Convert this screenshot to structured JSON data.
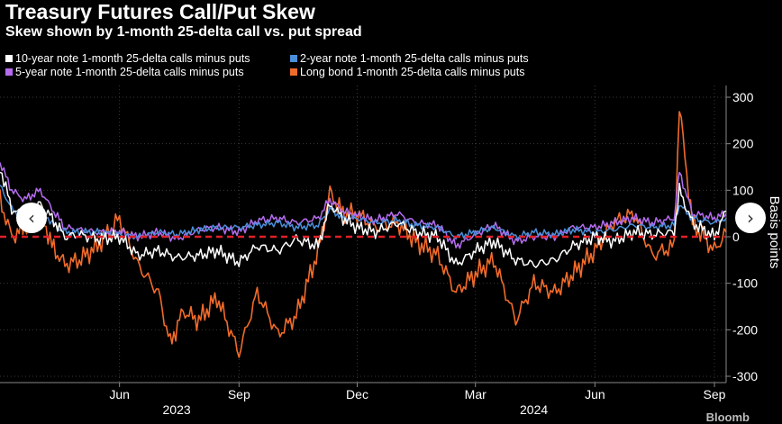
{
  "title": "Treasury Futures Call/Put Skew",
  "subtitle": "Skew shown by 1-month 25-delta call vs. put spread",
  "colors": {
    "background": "#000000",
    "ten_year": "#ffffff",
    "two_year": "#4a8fd9",
    "five_year": "#b56cf0",
    "long_bond": "#f26b2a",
    "zero_line": "#e0202a",
    "grid": "#3a3a3a"
  },
  "nav": {
    "prev_icon": "chevron-left-icon",
    "next_icon": "chevron-right-icon",
    "prev_glyph": "‹",
    "next_glyph": "›"
  },
  "source_partial": "Bloomb",
  "chart_data": {
    "type": "line",
    "title": "Treasury Futures Call/Put Skew",
    "ylabel": "Basis points",
    "ylim": [
      -320,
      330
    ],
    "yticks": [
      300,
      200,
      100,
      0,
      -100,
      -200,
      -300
    ],
    "x_range": [
      "2023-03-01",
      "2024-09-10"
    ],
    "month_ticks": [
      {
        "label": "Jun",
        "date": "2023-06-01"
      },
      {
        "label": "Sep",
        "date": "2023-09-01"
      },
      {
        "label": "Dec",
        "date": "2023-12-01"
      },
      {
        "label": "Mar",
        "date": "2024-03-01"
      },
      {
        "label": "Jun",
        "date": "2024-06-01"
      },
      {
        "label": "Sep",
        "date": "2024-09-01"
      }
    ],
    "year_labels": [
      {
        "label": "2023",
        "date": "2023-07-15"
      },
      {
        "label": "2024",
        "date": "2024-04-15"
      }
    ],
    "zero_line": 0,
    "series": [
      {
        "name": "10-year note 1-month 25-delta calls minus puts",
        "key": "ten_year",
        "points": [
          [
            "2023-03-01",
            150
          ],
          [
            "2023-03-10",
            60
          ],
          [
            "2023-03-20",
            40
          ],
          [
            "2023-04-01",
            70
          ],
          [
            "2023-04-10",
            40
          ],
          [
            "2023-04-20",
            0
          ],
          [
            "2023-05-01",
            5
          ],
          [
            "2023-05-15",
            -5
          ],
          [
            "2023-06-01",
            0
          ],
          [
            "2023-06-15",
            -40
          ],
          [
            "2023-07-01",
            -30
          ],
          [
            "2023-07-15",
            -45
          ],
          [
            "2023-08-01",
            -40
          ],
          [
            "2023-08-15",
            -30
          ],
          [
            "2023-09-01",
            -55
          ],
          [
            "2023-09-15",
            -20
          ],
          [
            "2023-10-01",
            -30
          ],
          [
            "2023-10-15",
            -5
          ],
          [
            "2023-11-01",
            -20
          ],
          [
            "2023-11-10",
            70
          ],
          [
            "2023-11-20",
            40
          ],
          [
            "2023-12-01",
            20
          ],
          [
            "2023-12-15",
            10
          ],
          [
            "2024-01-01",
            30
          ],
          [
            "2024-01-15",
            10
          ],
          [
            "2024-02-01",
            0
          ],
          [
            "2024-02-15",
            -60
          ],
          [
            "2024-03-01",
            -30
          ],
          [
            "2024-03-15",
            -10
          ],
          [
            "2024-04-01",
            -50
          ],
          [
            "2024-04-15",
            -60
          ],
          [
            "2024-05-01",
            -50
          ],
          [
            "2024-05-15",
            -20
          ],
          [
            "2024-06-01",
            0
          ],
          [
            "2024-06-15",
            -10
          ],
          [
            "2024-07-01",
            10
          ],
          [
            "2024-07-15",
            5
          ],
          [
            "2024-08-01",
            10
          ],
          [
            "2024-08-05",
            100
          ],
          [
            "2024-08-15",
            30
          ],
          [
            "2024-09-01",
            0
          ],
          [
            "2024-09-10",
            55
          ]
        ]
      },
      {
        "name": "2-year note 1-month 25-delta calls minus puts",
        "key": "two_year",
        "points": [
          [
            "2023-03-01",
            110
          ],
          [
            "2023-03-10",
            60
          ],
          [
            "2023-03-20",
            40
          ],
          [
            "2023-04-01",
            60
          ],
          [
            "2023-04-10",
            30
          ],
          [
            "2023-04-20",
            10
          ],
          [
            "2023-05-01",
            10
          ],
          [
            "2023-05-15",
            10
          ],
          [
            "2023-06-01",
            5
          ],
          [
            "2023-06-15",
            0
          ],
          [
            "2023-07-01",
            10
          ],
          [
            "2023-07-15",
            5
          ],
          [
            "2023-08-01",
            15
          ],
          [
            "2023-08-15",
            20
          ],
          [
            "2023-09-01",
            20
          ],
          [
            "2023-09-15",
            25
          ],
          [
            "2023-10-01",
            30
          ],
          [
            "2023-10-15",
            20
          ],
          [
            "2023-11-01",
            25
          ],
          [
            "2023-11-10",
            60
          ],
          [
            "2023-11-20",
            40
          ],
          [
            "2023-12-01",
            40
          ],
          [
            "2023-12-15",
            30
          ],
          [
            "2024-01-01",
            35
          ],
          [
            "2024-01-15",
            25
          ],
          [
            "2024-02-01",
            20
          ],
          [
            "2024-02-15",
            0
          ],
          [
            "2024-03-01",
            10
          ],
          [
            "2024-03-15",
            20
          ],
          [
            "2024-04-01",
            0
          ],
          [
            "2024-04-15",
            10
          ],
          [
            "2024-05-01",
            5
          ],
          [
            "2024-05-15",
            15
          ],
          [
            "2024-06-01",
            10
          ],
          [
            "2024-06-15",
            15
          ],
          [
            "2024-07-01",
            25
          ],
          [
            "2024-07-15",
            20
          ],
          [
            "2024-08-01",
            25
          ],
          [
            "2024-08-05",
            70
          ],
          [
            "2024-08-15",
            40
          ],
          [
            "2024-09-01",
            30
          ],
          [
            "2024-09-10",
            40
          ]
        ]
      },
      {
        "name": "5-year note 1-month 25-delta calls minus puts",
        "key": "five_year",
        "points": [
          [
            "2023-03-01",
            160
          ],
          [
            "2023-03-10",
            100
          ],
          [
            "2023-03-20",
            80
          ],
          [
            "2023-04-01",
            100
          ],
          [
            "2023-04-10",
            60
          ],
          [
            "2023-04-20",
            20
          ],
          [
            "2023-05-01",
            15
          ],
          [
            "2023-05-15",
            10
          ],
          [
            "2023-06-01",
            10
          ],
          [
            "2023-06-15",
            0
          ],
          [
            "2023-07-01",
            10
          ],
          [
            "2023-07-15",
            -5
          ],
          [
            "2023-08-01",
            15
          ],
          [
            "2023-08-15",
            20
          ],
          [
            "2023-09-01",
            10
          ],
          [
            "2023-09-15",
            35
          ],
          [
            "2023-10-01",
            40
          ],
          [
            "2023-10-15",
            30
          ],
          [
            "2023-11-01",
            40
          ],
          [
            "2023-11-10",
            80
          ],
          [
            "2023-11-20",
            55
          ],
          [
            "2023-12-01",
            45
          ],
          [
            "2023-12-15",
            35
          ],
          [
            "2024-01-01",
            50
          ],
          [
            "2024-01-15",
            30
          ],
          [
            "2024-02-01",
            25
          ],
          [
            "2024-02-15",
            -20
          ],
          [
            "2024-03-01",
            5
          ],
          [
            "2024-03-15",
            25
          ],
          [
            "2024-04-01",
            -10
          ],
          [
            "2024-04-15",
            0
          ],
          [
            "2024-05-01",
            0
          ],
          [
            "2024-05-15",
            20
          ],
          [
            "2024-06-01",
            20
          ],
          [
            "2024-06-15",
            30
          ],
          [
            "2024-07-01",
            40
          ],
          [
            "2024-07-15",
            30
          ],
          [
            "2024-08-01",
            40
          ],
          [
            "2024-08-05",
            140
          ],
          [
            "2024-08-15",
            50
          ],
          [
            "2024-09-01",
            40
          ],
          [
            "2024-09-10",
            50
          ]
        ]
      },
      {
        "name": "Long bond 1-month 25-delta calls minus puts",
        "key": "long_bond",
        "points": [
          [
            "2023-03-01",
            80
          ],
          [
            "2023-03-10",
            0
          ],
          [
            "2023-03-20",
            20
          ],
          [
            "2023-04-01",
            60
          ],
          [
            "2023-04-10",
            -20
          ],
          [
            "2023-04-20",
            -60
          ],
          [
            "2023-05-01",
            -50
          ],
          [
            "2023-05-15",
            -20
          ],
          [
            "2023-06-01",
            40
          ],
          [
            "2023-06-15",
            -60
          ],
          [
            "2023-07-01",
            -120
          ],
          [
            "2023-07-10",
            -230
          ],
          [
            "2023-07-20",
            -160
          ],
          [
            "2023-08-01",
            -180
          ],
          [
            "2023-08-15",
            -130
          ],
          [
            "2023-09-01",
            -250
          ],
          [
            "2023-09-15",
            -120
          ],
          [
            "2023-10-01",
            -210
          ],
          [
            "2023-10-15",
            -170
          ],
          [
            "2023-11-01",
            -30
          ],
          [
            "2023-11-10",
            95
          ],
          [
            "2023-11-20",
            50
          ],
          [
            "2023-12-01",
            50
          ],
          [
            "2023-12-15",
            20
          ],
          [
            "2024-01-01",
            30
          ],
          [
            "2024-01-15",
            -10
          ],
          [
            "2024-02-01",
            -40
          ],
          [
            "2024-02-15",
            -120
          ],
          [
            "2024-03-01",
            -80
          ],
          [
            "2024-03-15",
            -50
          ],
          [
            "2024-04-01",
            -180
          ],
          [
            "2024-04-15",
            -100
          ],
          [
            "2024-05-01",
            -120
          ],
          [
            "2024-05-15",
            -80
          ],
          [
            "2024-06-01",
            -30
          ],
          [
            "2024-06-15",
            30
          ],
          [
            "2024-07-01",
            50
          ],
          [
            "2024-07-15",
            -40
          ],
          [
            "2024-08-01",
            -20
          ],
          [
            "2024-08-05",
            280
          ],
          [
            "2024-08-15",
            30
          ],
          [
            "2024-09-01",
            -30
          ],
          [
            "2024-09-10",
            10
          ]
        ]
      }
    ]
  }
}
